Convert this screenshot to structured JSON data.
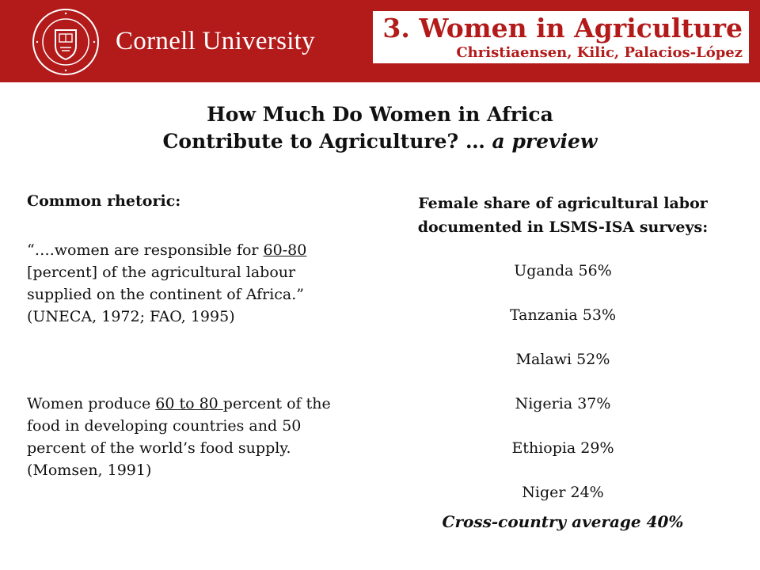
{
  "header": {
    "university": "Cornell University",
    "seal_text": "CORNELL UNIVERSITY · FOUNDED A.D. 1865",
    "section_title": "3. Women in Agriculture",
    "authors": "Christiaensen, Kilic, Palacios-López",
    "colors": {
      "banner": "#b31b1b",
      "text": "#ffffff"
    }
  },
  "slide": {
    "title_line1": "How Much Do Women in Africa",
    "title_line2": "Contribute to Agriculture? … ",
    "title_preview": "a preview"
  },
  "left": {
    "heading": "Common rhetoric:",
    "quote1_a": "“….women are responsible for ",
    "quote1_u": "60-80",
    "quote1_b": " [percent] of the agricultural labour supplied on the continent of Africa.” (UNECA, 1972; FAO, 1995)",
    "quote2_a": "Women produce ",
    "quote2_u": "60 to 80 ",
    "quote2_b": "percent of the food in developing countries and 50 percent of the world’s food supply. (Momsen, 1991)"
  },
  "right": {
    "heading": "Female share of agricultural labor documented in LSMS-ISA surveys:",
    "countries": [
      "Uganda 56%",
      "Tanzania 53%",
      "Malawi 52%",
      "Nigeria 37%",
      "Ethiopia 29%",
      "Niger 24%"
    ],
    "average": "Cross-country average 40%"
  }
}
